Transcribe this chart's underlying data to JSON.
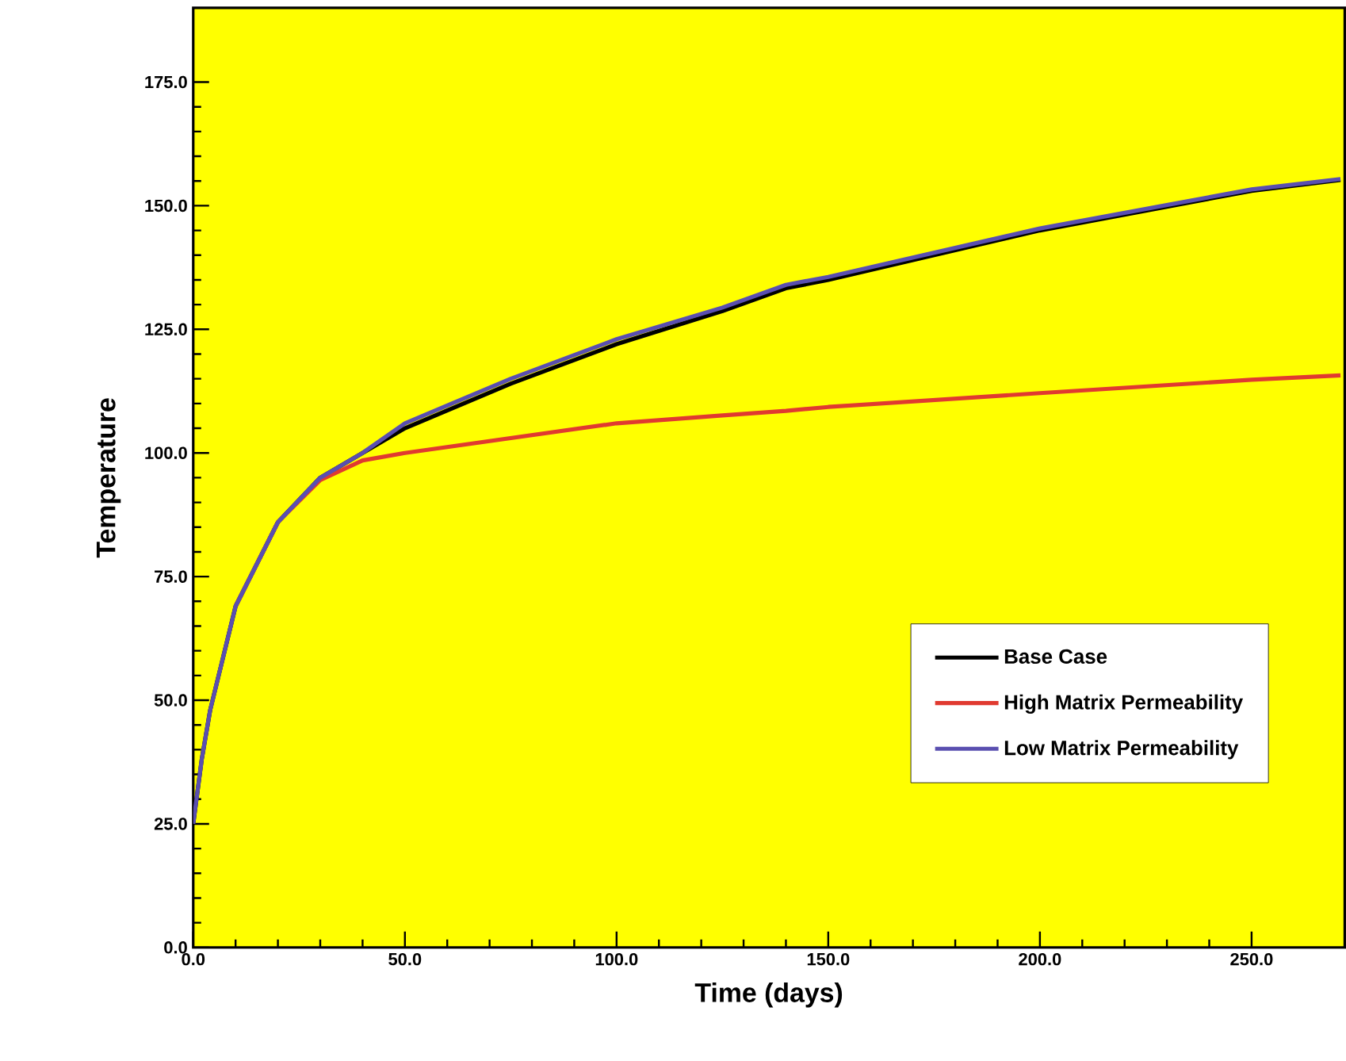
{
  "chart_data": {
    "type": "line",
    "xlabel": "Time (days)",
    "ylabel": "Temperature",
    "x": [
      0,
      2,
      4,
      10,
      20,
      30,
      40,
      50,
      75,
      100,
      125,
      140,
      150,
      200,
      250,
      271
    ],
    "series": [
      {
        "name": "Base Case",
        "color": "#000000",
        "values": [
          25,
          38,
          48,
          69,
          86,
          95,
          100,
          105,
          114,
          122,
          128.7,
          133.3,
          135,
          145,
          153,
          155.2
        ]
      },
      {
        "name": "High Matrix Permeability",
        "color": "#e03a30",
        "values": [
          null,
          null,
          null,
          69,
          86,
          94.5,
          98.5,
          100,
          103,
          106,
          107.6,
          108.5,
          109.3,
          112.1,
          114.8,
          115.7
        ]
      },
      {
        "name": "Low Matrix Permeability",
        "color": "#5a4fb0",
        "values": [
          25,
          38,
          48,
          69,
          86,
          95,
          100,
          106,
          115,
          123,
          129.4,
          134,
          135.6,
          145.4,
          153.3,
          155.4
        ]
      }
    ],
    "xlim": [
      0,
      272
    ],
    "ylim": [
      0,
      190
    ],
    "xticks": [
      {
        "value": 0,
        "label": "0.0"
      },
      {
        "value": 50,
        "label": "50.0"
      },
      {
        "value": 100,
        "label": "100.0"
      },
      {
        "value": 150,
        "label": "150.0"
      },
      {
        "value": 200,
        "label": "200.0"
      },
      {
        "value": 250,
        "label": "250.0"
      }
    ],
    "yticks": [
      {
        "value": 0,
        "label": "0.0"
      },
      {
        "value": 25,
        "label": "25.0"
      },
      {
        "value": 50,
        "label": "50.0"
      },
      {
        "value": 75,
        "label": "75.0"
      },
      {
        "value": 100,
        "label": "100.0"
      },
      {
        "value": 125,
        "label": "125.0"
      },
      {
        "value": 150,
        "label": "150.0"
      },
      {
        "value": 175,
        "label": "175.0"
      }
    ],
    "grid": false,
    "legend": "bottom right",
    "marker": "none",
    "line_style": "solid"
  }
}
